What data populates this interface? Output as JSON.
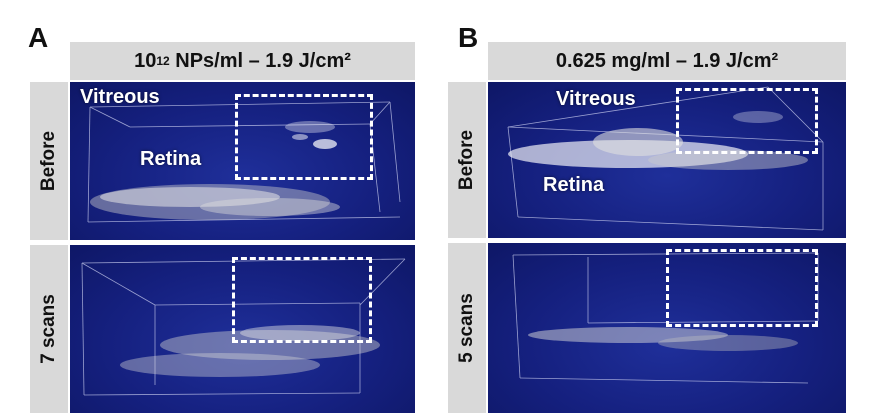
{
  "panels": {
    "a": {
      "letter": "A",
      "header": "10",
      "header_sup": "12",
      "header_rest": " NPs/ml – 1.9 J/cm²",
      "row_before": "Before",
      "row_after": "7 scans",
      "label_vitreous": "Vitreous",
      "label_retina": "Retina"
    },
    "b": {
      "letter": "B",
      "header": "0.625 mg/ml – 1.9 J/cm²",
      "row_before": "Before",
      "row_after": "5 scans",
      "label_vitreous": "Vitreous",
      "label_retina": "Retina"
    }
  },
  "colors": {
    "background_blue": "#15207f",
    "header_gray": "#d9d9d9",
    "annotation_white": "#ffffff"
  }
}
